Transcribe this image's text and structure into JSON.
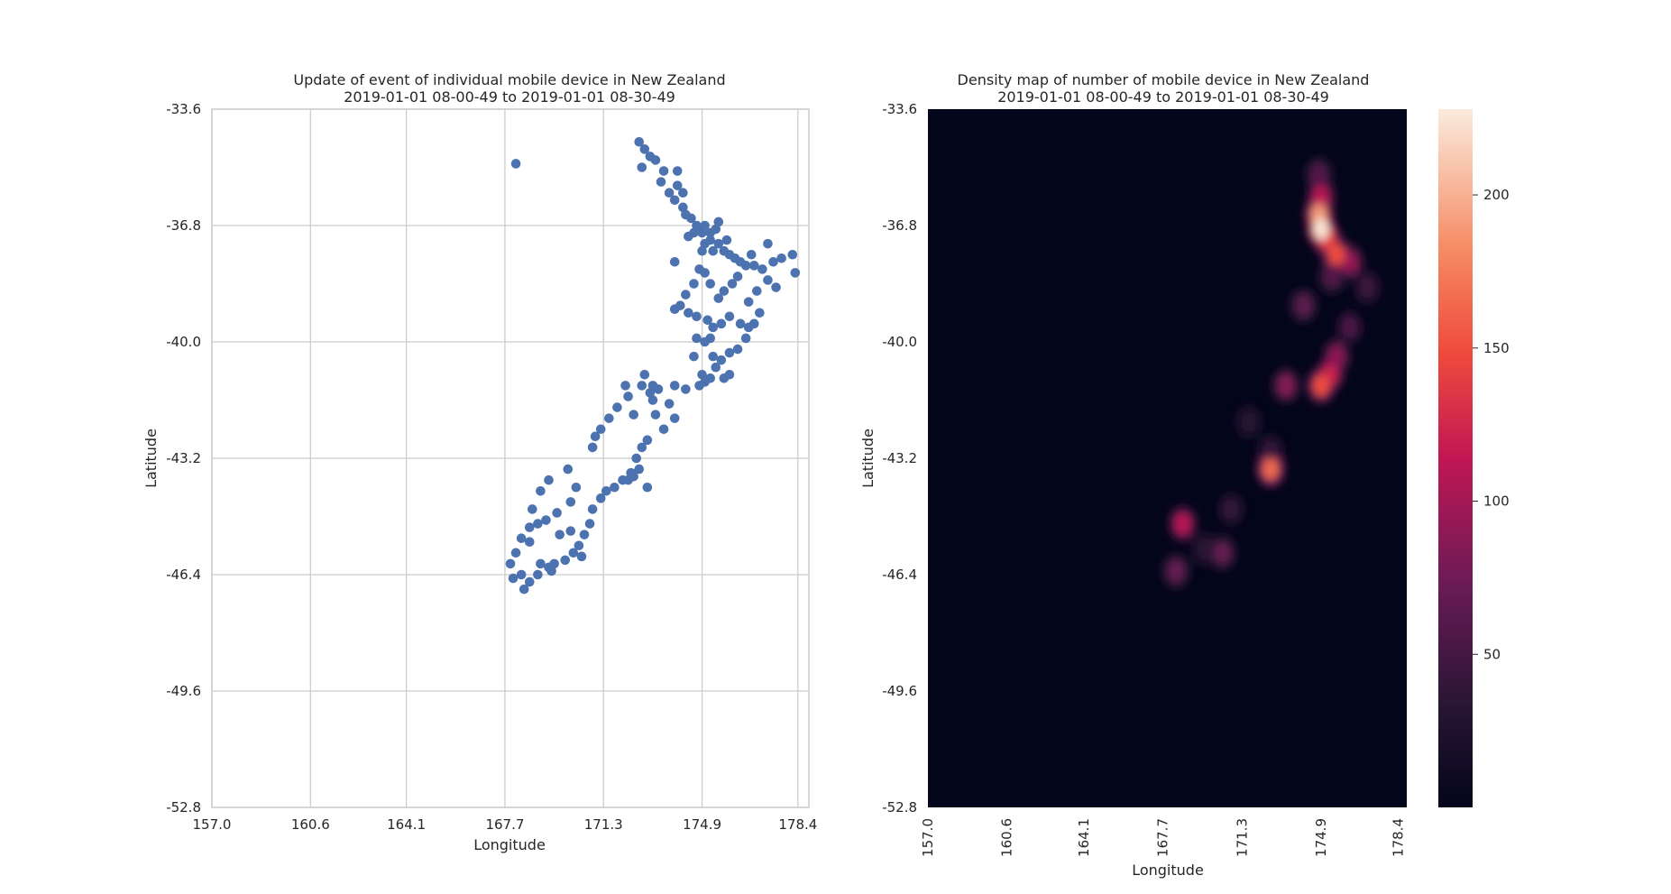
{
  "chart_data": [
    {
      "type": "scatter",
      "title": "Update of event of individual mobile device in New Zealand",
      "subtitle": "2019-01-01 08-00-49 to 2019-01-01 08-30-49",
      "xlabel": "Longitude",
      "ylabel": "Latitude",
      "xlim": [
        157.0,
        178.8
      ],
      "ylim": [
        -52.8,
        -33.6
      ],
      "xticks": [
        "157.0",
        "160.6",
        "164.1",
        "167.7",
        "171.3",
        "174.9",
        "178.4"
      ],
      "yticks": [
        "-33.6",
        "-36.8",
        "-40.0",
        "-43.2",
        "-46.4",
        "-49.6",
        "-52.8"
      ],
      "grid": true,
      "color": "#4c72b0",
      "points": [
        [
          168.1,
          -35.1
        ],
        [
          172.6,
          -34.5
        ],
        [
          172.8,
          -34.7
        ],
        [
          173.0,
          -34.9
        ],
        [
          173.2,
          -35.0
        ],
        [
          173.5,
          -35.3
        ],
        [
          173.4,
          -35.6
        ],
        [
          173.7,
          -35.9
        ],
        [
          174.0,
          -35.7
        ],
        [
          174.2,
          -35.9
        ],
        [
          173.9,
          -36.1
        ],
        [
          174.2,
          -36.3
        ],
        [
          174.3,
          -36.5
        ],
        [
          174.5,
          -36.6
        ],
        [
          174.7,
          -36.8
        ],
        [
          174.8,
          -36.9
        ],
        [
          174.9,
          -37.0
        ],
        [
          175.0,
          -36.8
        ],
        [
          175.2,
          -37.0
        ],
        [
          175.4,
          -36.9
        ],
        [
          175.2,
          -37.2
        ],
        [
          175.0,
          -37.3
        ],
        [
          174.9,
          -37.5
        ],
        [
          175.3,
          -37.5
        ],
        [
          175.5,
          -37.3
        ],
        [
          175.7,
          -37.5
        ],
        [
          175.9,
          -37.6
        ],
        [
          176.1,
          -37.7
        ],
        [
          176.3,
          -37.8
        ],
        [
          176.5,
          -37.9
        ],
        [
          176.8,
          -37.9
        ],
        [
          177.1,
          -38.0
        ],
        [
          177.5,
          -37.8
        ],
        [
          177.8,
          -37.7
        ],
        [
          178.2,
          -37.6
        ],
        [
          178.3,
          -38.1
        ],
        [
          177.3,
          -38.3
        ],
        [
          177.6,
          -38.5
        ],
        [
          176.9,
          -38.6
        ],
        [
          176.6,
          -38.9
        ],
        [
          176.2,
          -38.2
        ],
        [
          176.0,
          -38.4
        ],
        [
          175.7,
          -38.6
        ],
        [
          175.5,
          -38.8
        ],
        [
          175.2,
          -38.4
        ],
        [
          175.0,
          -38.1
        ],
        [
          174.8,
          -38.0
        ],
        [
          174.6,
          -38.4
        ],
        [
          174.3,
          -38.7
        ],
        [
          174.1,
          -39.0
        ],
        [
          173.9,
          -39.1
        ],
        [
          174.4,
          -39.2
        ],
        [
          174.7,
          -39.3
        ],
        [
          175.1,
          -39.4
        ],
        [
          175.3,
          -39.6
        ],
        [
          175.6,
          -39.5
        ],
        [
          175.9,
          -39.3
        ],
        [
          176.3,
          -39.5
        ],
        [
          176.6,
          -39.6
        ],
        [
          176.8,
          -39.5
        ],
        [
          177.0,
          -39.2
        ],
        [
          176.5,
          -39.9
        ],
        [
          176.2,
          -40.2
        ],
        [
          175.9,
          -40.3
        ],
        [
          175.6,
          -40.5
        ],
        [
          175.4,
          -40.7
        ],
        [
          175.2,
          -41.0
        ],
        [
          175.0,
          -41.1
        ],
        [
          174.8,
          -41.2
        ],
        [
          174.9,
          -40.9
        ],
        [
          175.3,
          -40.4
        ],
        [
          175.0,
          -40.0
        ],
        [
          174.7,
          -39.9
        ],
        [
          175.7,
          -41.0
        ],
        [
          175.9,
          -40.9
        ],
        [
          174.3,
          -41.3
        ],
        [
          173.9,
          -41.2
        ],
        [
          173.3,
          -41.3
        ],
        [
          173.1,
          -41.2
        ],
        [
          172.8,
          -40.9
        ],
        [
          172.7,
          -41.2
        ],
        [
          173.0,
          -41.4
        ],
        [
          173.1,
          -41.6
        ],
        [
          172.2,
          -41.5
        ],
        [
          171.8,
          -41.8
        ],
        [
          172.1,
          -41.2
        ],
        [
          173.7,
          -41.7
        ],
        [
          173.9,
          -42.1
        ],
        [
          173.5,
          -42.4
        ],
        [
          172.9,
          -42.7
        ],
        [
          172.7,
          -42.9
        ],
        [
          172.5,
          -43.2
        ],
        [
          172.6,
          -43.5
        ],
        [
          172.3,
          -43.6
        ],
        [
          172.0,
          -43.8
        ],
        [
          172.2,
          -43.8
        ],
        [
          172.4,
          -43.7
        ],
        [
          171.7,
          -44.0
        ],
        [
          171.4,
          -44.1
        ],
        [
          171.2,
          -44.3
        ],
        [
          170.9,
          -44.6
        ],
        [
          170.8,
          -45.0
        ],
        [
          170.6,
          -45.3
        ],
        [
          170.4,
          -45.6
        ],
        [
          170.2,
          -45.8
        ],
        [
          170.5,
          -45.9
        ],
        [
          169.9,
          -46.0
        ],
        [
          169.5,
          -46.1
        ],
        [
          169.3,
          -46.2
        ],
        [
          169.0,
          -46.1
        ],
        [
          168.9,
          -46.4
        ],
        [
          168.6,
          -46.6
        ],
        [
          168.3,
          -46.4
        ],
        [
          168.4,
          -46.8
        ],
        [
          168.0,
          -46.5
        ],
        [
          167.9,
          -46.1
        ],
        [
          168.1,
          -45.8
        ],
        [
          168.3,
          -45.4
        ],
        [
          168.6,
          -45.1
        ],
        [
          168.9,
          -45.0
        ],
        [
          169.2,
          -44.9
        ],
        [
          169.6,
          -44.7
        ],
        [
          170.1,
          -44.4
        ],
        [
          170.3,
          -44.0
        ],
        [
          170.0,
          -43.5
        ],
        [
          169.3,
          -43.8
        ],
        [
          169.0,
          -44.1
        ],
        [
          168.7,
          -44.6
        ],
        [
          171.0,
          -42.6
        ],
        [
          171.2,
          -42.4
        ],
        [
          170.9,
          -42.9
        ],
        [
          171.5,
          -42.1
        ],
        [
          172.4,
          -42.0
        ],
        [
          173.2,
          -42.0
        ],
        [
          172.9,
          -44.0
        ],
        [
          169.7,
          -45.3
        ],
        [
          170.1,
          -45.2
        ],
        [
          168.6,
          -45.5
        ],
        [
          169.4,
          -46.3
        ],
        [
          172.7,
          -35.2
        ],
        [
          174.0,
          -35.3
        ],
        [
          174.4,
          -37.1
        ],
        [
          173.9,
          -37.8
        ],
        [
          174.6,
          -37.0
        ],
        [
          175.5,
          -36.7
        ],
        [
          175.8,
          -37.2
        ],
        [
          176.7,
          -37.6
        ],
        [
          177.3,
          -37.3
        ],
        [
          175.2,
          -39.9
        ],
        [
          174.6,
          -40.4
        ]
      ]
    },
    {
      "type": "heatmap",
      "title": "Density map of number of mobile device in New Zealand",
      "subtitle": "2019-01-01 08-00-49 to 2019-01-01 08-30-49",
      "xlabel": "Longitude",
      "ylabel": "Latitude",
      "xlim": [
        157.0,
        178.8
      ],
      "ylim": [
        -52.8,
        -33.6
      ],
      "xticks": [
        "157.0",
        "160.6",
        "164.1",
        "167.7",
        "171.3",
        "174.9",
        "178.4"
      ],
      "yticks": [
        "-33.6",
        "-36.8",
        "-40.0",
        "-43.2",
        "-46.4",
        "-49.6",
        "-52.8"
      ],
      "colorbar_ticks": [
        "50",
        "100",
        "150",
        "200"
      ],
      "colorbar_range": [
        0,
        228
      ],
      "hotspots": [
        {
          "lon": 174.8,
          "lat": -35.4,
          "value": 60
        },
        {
          "lon": 174.9,
          "lat": -36.0,
          "value": 110
        },
        {
          "lon": 174.8,
          "lat": -36.5,
          "value": 190
        },
        {
          "lon": 174.9,
          "lat": -36.9,
          "value": 225
        },
        {
          "lon": 175.2,
          "lat": -37.2,
          "value": 140
        },
        {
          "lon": 175.6,
          "lat": -37.6,
          "value": 150
        },
        {
          "lon": 176.2,
          "lat": -37.8,
          "value": 95
        },
        {
          "lon": 177.0,
          "lat": -38.5,
          "value": 45
        },
        {
          "lon": 175.4,
          "lat": -38.2,
          "value": 60
        },
        {
          "lon": 174.1,
          "lat": -39.0,
          "value": 65
        },
        {
          "lon": 176.2,
          "lat": -39.6,
          "value": 55
        },
        {
          "lon": 175.6,
          "lat": -40.4,
          "value": 90
        },
        {
          "lon": 175.3,
          "lat": -40.9,
          "value": 120
        },
        {
          "lon": 174.9,
          "lat": -41.2,
          "value": 150
        },
        {
          "lon": 173.3,
          "lat": -41.2,
          "value": 85
        },
        {
          "lon": 172.6,
          "lat": -43.0,
          "value": 40
        },
        {
          "lon": 172.6,
          "lat": -43.5,
          "value": 165
        },
        {
          "lon": 171.6,
          "lat": -42.2,
          "value": 30
        },
        {
          "lon": 170.8,
          "lat": -44.6,
          "value": 40
        },
        {
          "lon": 170.4,
          "lat": -45.8,
          "value": 70
        },
        {
          "lon": 168.6,
          "lat": -45.0,
          "value": 110
        },
        {
          "lon": 168.3,
          "lat": -46.3,
          "value": 70
        },
        {
          "lon": 169.6,
          "lat": -45.7,
          "value": 35
        }
      ]
    }
  ]
}
